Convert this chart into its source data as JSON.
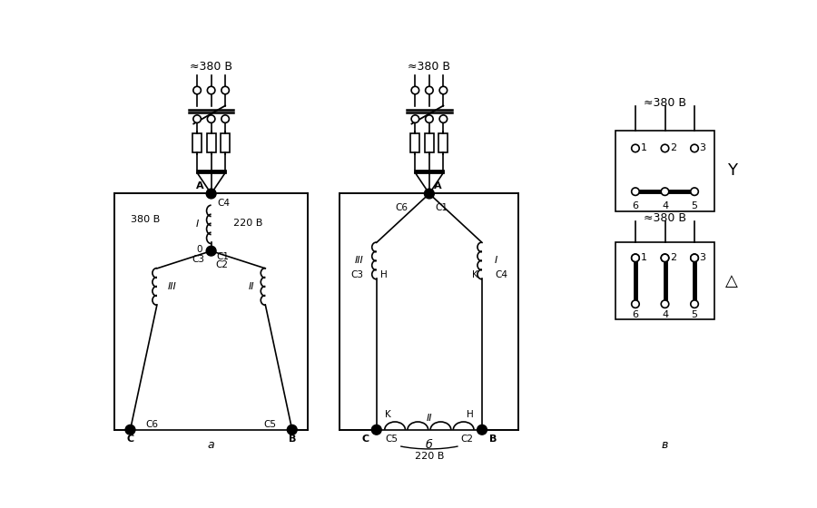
{
  "bg_color": "#ffffff",
  "line_color": "#000000",
  "title_a": "а",
  "title_b": "б",
  "title_c": "в",
  "label_380_top_a": "≈380 В",
  "label_380_top_b": "≈380 В",
  "label_380_c1": "≈380 В",
  "label_380_c2": "≈380 В",
  "label_380_left": "380 В",
  "label_220_right": "220 В",
  "label_220_bottom": "220 В",
  "star_symbol": "Y",
  "delta_symbol": "△"
}
